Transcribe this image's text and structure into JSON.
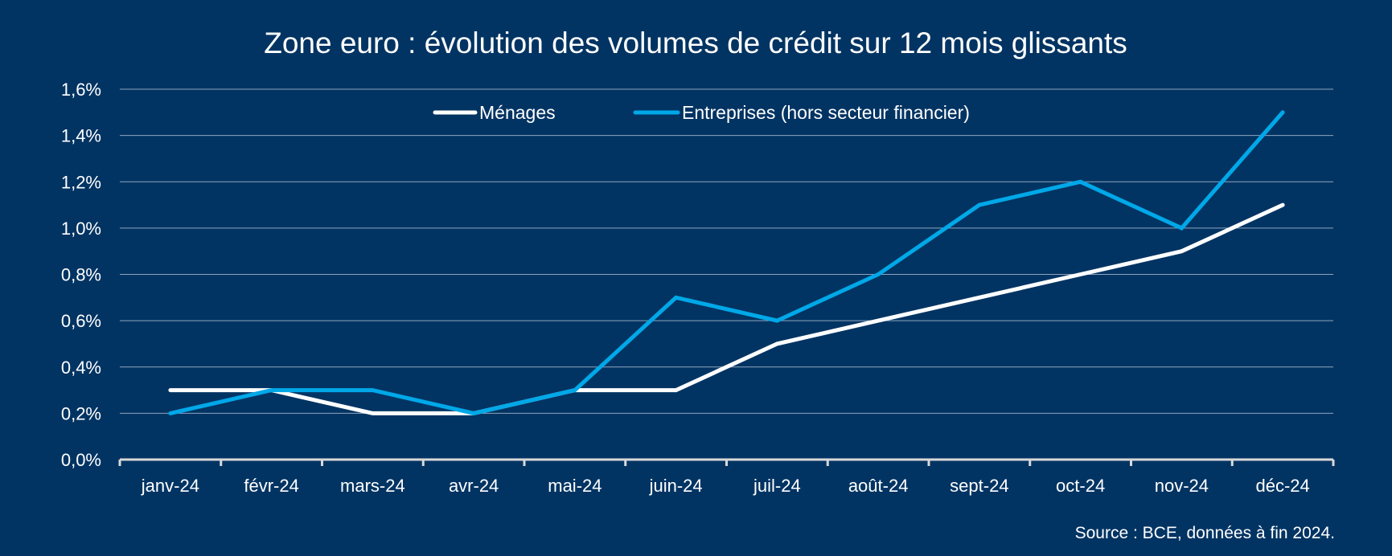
{
  "chart_data": {
    "type": "line",
    "title": "Zone euro : évolution des volumes de crédit sur 12 mois glissants",
    "xlabel": "",
    "ylabel": "",
    "categories": [
      "janv-24",
      "févr-24",
      "mars-24",
      "avr-24",
      "mai-24",
      "juin-24",
      "juil-24",
      "août-24",
      "sept-24",
      "oct-24",
      "nov-24",
      "déc-24"
    ],
    "series": [
      {
        "name": "Ménages",
        "color": "#ffffff",
        "values": [
          0.3,
          0.3,
          0.2,
          0.2,
          0.3,
          0.3,
          0.5,
          0.6,
          0.7,
          0.8,
          0.9,
          1.1
        ]
      },
      {
        "name": "Entreprises (hors secteur financier)",
        "color": "#00a8e8",
        "values": [
          0.2,
          0.3,
          0.3,
          0.2,
          0.3,
          0.7,
          0.6,
          0.8,
          1.1,
          1.2,
          1.0,
          1.5
        ]
      }
    ],
    "ylim": [
      0,
      1.6
    ],
    "yticks": [
      0,
      0.2,
      0.4,
      0.6,
      0.8,
      1.0,
      1.2,
      1.4,
      1.6
    ],
    "ytick_labels": [
      "0,0%",
      "0,2%",
      "0,4%",
      "0,6%",
      "0,8%",
      "1,0%",
      "1,2%",
      "1,4%",
      "1,6%"
    ],
    "grid": true,
    "legend_position": "top-center",
    "source": "Source : BCE, données à fin 2024."
  },
  "colors": {
    "background": "#023463",
    "grid": "#8fa4bf",
    "axis": "#d9d9d9"
  }
}
